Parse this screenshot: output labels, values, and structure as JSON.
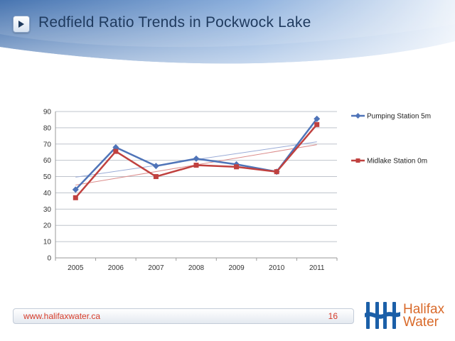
{
  "slide": {
    "title": "Redfield Ratio Trends in Pockwock Lake",
    "nav_icon": "play-arrow-icon"
  },
  "footer": {
    "url": "www.halifaxwater.ca",
    "page_number": "16"
  },
  "logo": {
    "line1": "Halifax",
    "line2": "Water",
    "mark_icon": "halifax-water-hh-logo-icon",
    "mark_color": "#1b5fa8",
    "word_color": "#d96a2a"
  },
  "colors": {
    "title": "#1f3a5e",
    "header_gradient": [
      "#2f62a6",
      "#7ea6d9",
      "#eaf1fa"
    ],
    "footer_text": "#d63c2a"
  },
  "chart_data": {
    "type": "line",
    "categories": [
      "2005",
      "2006",
      "2007",
      "2008",
      "2009",
      "2010",
      "2011"
    ],
    "ylim": [
      0,
      90
    ],
    "yticks": [
      "0",
      "10",
      "20",
      "30",
      "40",
      "50",
      "60",
      "70",
      "80",
      "90"
    ],
    "grid": true,
    "legend_position": "right",
    "series": [
      {
        "name": "Pumping Station 5m",
        "values": [
          42,
          68,
          56.5,
          61,
          57.5,
          53,
          85.5
        ],
        "color": "#4f74b8",
        "marker": "diamond",
        "trendline": true,
        "trend_color": "#9aabd6"
      },
      {
        "name": "Midlake Station 0m",
        "values": [
          37,
          65.5,
          50,
          57,
          56,
          53,
          82
        ],
        "color": "#c0413f",
        "marker": "square",
        "trendline": true,
        "trend_color": "#db8c8b"
      }
    ]
  }
}
